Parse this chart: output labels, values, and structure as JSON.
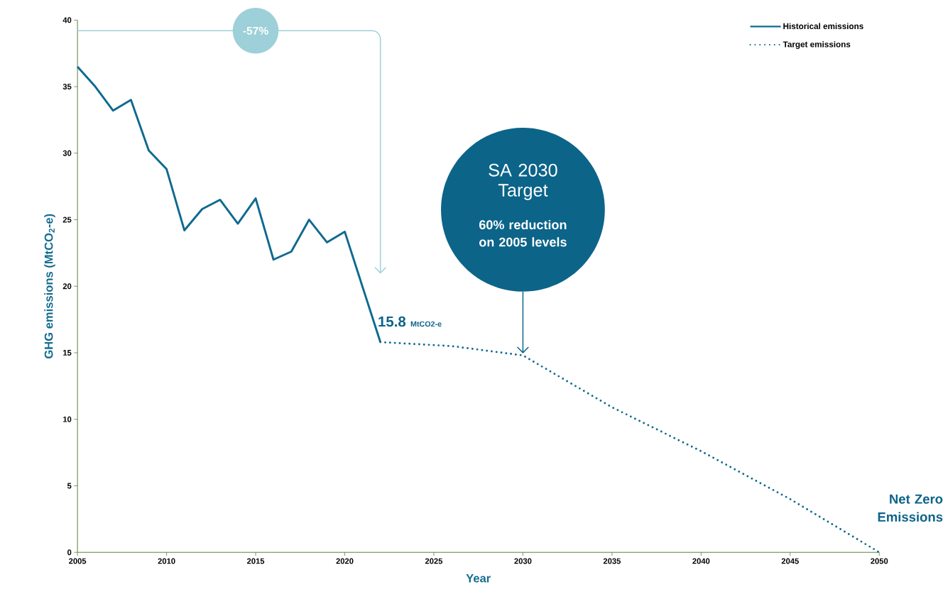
{
  "chart_data": {
    "type": "line",
    "xlabel": "Year",
    "ylabel": "GHG emissions (MtCO$_{2}$-e)",
    "xlim": [
      2005,
      2050
    ],
    "ylim": [
      0,
      40
    ],
    "xticks": [
      2005,
      2010,
      2015,
      2020,
      2025,
      2030,
      2035,
      2040,
      2045,
      2050
    ],
    "yticks": [
      0,
      5,
      10,
      15,
      20,
      25,
      30,
      35,
      40
    ],
    "legend": "top right",
    "grid": false,
    "marker": "none",
    "series": [
      {
        "name": "Historical emissions",
        "color": "#0f6a8f",
        "line_style": "solid",
        "x": [
          2005,
          2006,
          2007,
          2008,
          2009,
          2010,
          2011,
          2012,
          2013,
          2014,
          2015,
          2016,
          2017,
          2018,
          2019,
          2020,
          2022
        ],
        "values": [
          36.5,
          35.0,
          33.2,
          34.0,
          30.2,
          28.8,
          24.2,
          25.8,
          26.5,
          24.7,
          26.6,
          22.0,
          22.6,
          25.0,
          23.3,
          24.1,
          15.8
        ]
      },
      {
        "name": "Target emissions",
        "color": "#0f6a8f",
        "line_style": "dotted",
        "x": [
          2022,
          2026,
          2030,
          2035,
          2040,
          2045,
          2050
        ],
        "values": [
          15.8,
          15.5,
          14.8,
          10.9,
          7.6,
          4.0,
          0
        ]
      }
    ],
    "annotations": [
      "-57%",
      {
        "text": "15.8",
        "x": 2022,
        "y": 15.8
      },
      "MtCO2-e",
      "SA 2030 Target",
      "60% reduction on 2005 levels",
      {
        "text": "Net Zero Emissions",
        "x": 2050,
        "y": 0
      }
    ]
  }
}
